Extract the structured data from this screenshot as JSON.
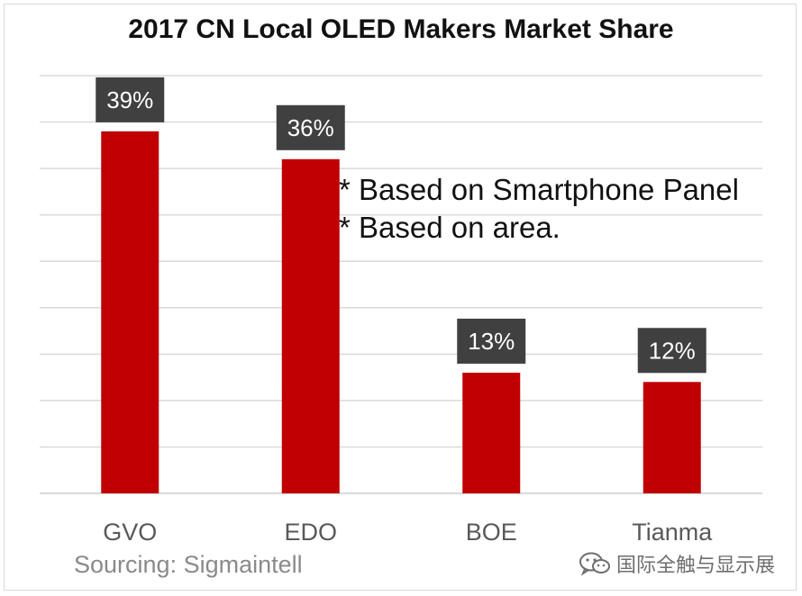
{
  "chart_data": {
    "type": "bar",
    "title": "2017 CN Local OLED Makers Market Share",
    "categories": [
      "GVO",
      "EDO",
      "BOE",
      "Tianma"
    ],
    "values": [
      39,
      36,
      13,
      12
    ],
    "data_labels": [
      "39%",
      "36%",
      "13%",
      "12%"
    ],
    "xlabel": "",
    "ylabel": "",
    "ylim": [
      0,
      45
    ],
    "grid": true,
    "legend": "none",
    "colors": {
      "bar": "#c00000",
      "label_bg": "#404040",
      "label_text": "#ffffff",
      "grid": "#d9d9d9",
      "tick_text": "#595959"
    }
  },
  "notes": [
    "* Based on Smartphone Panel",
    "* Based on area."
  ],
  "source": "Sourcing:  Sigmaintell",
  "watermark": {
    "icon": "wechat-icon",
    "text": "国际全触与显示展"
  }
}
